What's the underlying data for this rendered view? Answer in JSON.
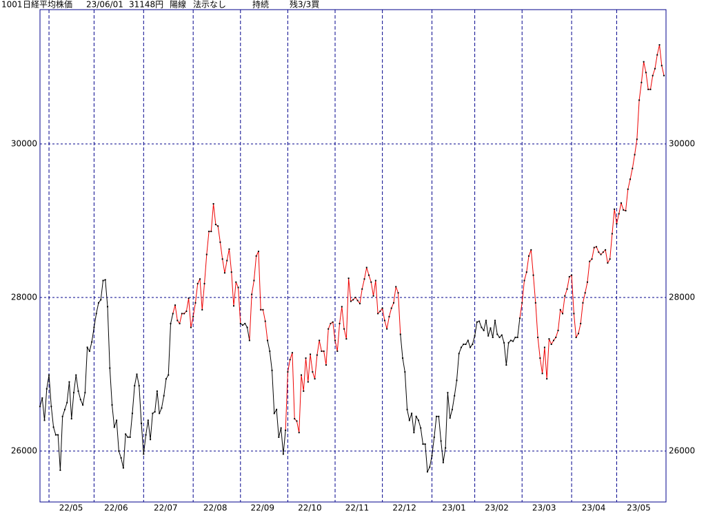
{
  "chart_data": {
    "type": "line",
    "header": [
      "1001",
      "日経平均株価",
      "23/06/01",
      "31148円",
      "陽線",
      "法示なし",
      "持続",
      "残3/3買"
    ],
    "ylim": [
      25336,
      31749
    ],
    "yticks": [
      26000,
      28000,
      30000
    ],
    "xlim": [
      0,
      277.9
    ],
    "xticks": [
      {
        "value": 4,
        "label": "22/05"
      },
      {
        "value": 24,
        "label": "22/06"
      },
      {
        "value": 46,
        "label": "22/07"
      },
      {
        "value": 68,
        "label": "22/08"
      },
      {
        "value": 89,
        "label": "22/09"
      },
      {
        "value": 110,
        "label": "22/10"
      },
      {
        "value": 131,
        "label": "22/11"
      },
      {
        "value": 152,
        "label": "22/12"
      },
      {
        "value": 174,
        "label": "23/01"
      },
      {
        "value": 193,
        "label": "23/02"
      },
      {
        "value": 214,
        "label": "23/03"
      },
      {
        "value": 236,
        "label": "23/04"
      },
      {
        "value": 256,
        "label": "23/05"
      }
    ],
    "grid": true,
    "frame_color": "#00008b",
    "dot_color": "#000",
    "values": [
      26580,
      26690,
      26400,
      26810,
      26990,
      26580,
      26310,
      26210,
      26210,
      25750,
      26450,
      26540,
      26630,
      26900,
      26420,
      26760,
      26990,
      26780,
      26670,
      26600,
      26760,
      27350,
      27300,
      27420,
      27610,
      27790,
      27930,
      27970,
      28220,
      28230,
      27880,
      27080,
      26600,
      26310,
      26400,
      26000,
      25910,
      25780,
      26220,
      26180,
      26180,
      26490,
      26850,
      27000,
      26850,
      26360,
      25960,
      26210,
      26400,
      26150,
      26490,
      26510,
      26780,
      26490,
      26560,
      26720,
      26940,
      26990,
      27660,
      27790,
      27900,
      27700,
      27660,
      27790,
      27790,
      27820,
      27990,
      27610,
      27750,
      27930,
      28180,
      28240,
      27840,
      28180,
      28560,
      28860,
      28860,
      29220,
      28950,
      28930,
      28720,
      28500,
      28320,
      28480,
      28630,
      28330,
      27890,
      28200,
      28130,
      27660,
      27640,
      27660,
      27610,
      27440,
      28040,
      28220,
      28540,
      28600,
      27840,
      27840,
      27690,
      27440,
      27300,
      27050,
      26490,
      26540,
      26180,
      26300,
      25960,
      26270,
      27030,
      27190,
      27280,
      26420,
      26390,
      26240,
      26990,
      26780,
      27210,
      26900,
      27260,
      27030,
      26940,
      27250,
      27440,
      27300,
      27300,
      27120,
      27590,
      27660,
      27680,
      27440,
      27300,
      27660,
      27880,
      27590,
      27460,
      28250,
      27950,
      27970,
      28000,
      27960,
      27920,
      28110,
      28240,
      28390,
      28290,
      28200,
      28020,
      28220,
      27790,
      27820,
      27860,
      27700,
      27590,
      27750,
      27860,
      27930,
      28140,
      28060,
      27520,
      27210,
      27030,
      26540,
      26400,
      26490,
      26240,
      26450,
      26400,
      26300,
      26090,
      26090,
      25730,
      25790,
      25940,
      26180,
      26450,
      26450,
      26130,
      25850,
      26040,
      26760,
      26430,
      26540,
      26720,
      26920,
      27270,
      27350,
      27390,
      27390,
      27440,
      27350,
      27390,
      27500,
      27680,
      27690,
      27610,
      27570,
      27700,
      27500,
      27600,
      27480,
      27700,
      27520,
      27480,
      27510,
      27410,
      27120,
      27410,
      27440,
      27430,
      27480,
      27480,
      27730,
      27930,
      28220,
      28330,
      28540,
      28620,
      28290,
      27930,
      27480,
      27210,
      27010,
      27350,
      26940,
      27460,
      27390,
      27440,
      27480,
      27570,
      27840,
      27790,
      28020,
      28110,
      28270,
      28290,
      27790,
      27480,
      27530,
      27660,
      27930,
      28060,
      28200,
      28470,
      28500,
      28650,
      28660,
      28590,
      28560,
      28590,
      28620,
      28450,
      28500,
      28830,
      29150,
      28960,
      29090,
      29230,
      29140,
      29130,
      29410,
      29540,
      29680,
      29860,
      30060,
      30570,
      30800,
      31070,
      30930,
      30710,
      30710,
      30890,
      30980,
      31160,
      31290,
      31020,
      30890
    ],
    "point_colors": [
      "#000",
      "#000",
      "#000",
      "#000",
      "#000",
      "#000",
      "#000",
      "#000",
      "#000",
      "#000",
      "#000",
      "#000",
      "#000",
      "#000",
      "#000",
      "#000",
      "#000",
      "#000",
      "#000",
      "#000",
      "#000",
      "#000",
      "#000",
      "#000",
      "#000",
      "#000",
      "#000",
      "#000",
      "#000",
      "#000",
      "#000",
      "#000",
      "#000",
      "#000",
      "#000",
      "#000",
      "#000",
      "#000",
      "#000",
      "#000",
      "#000",
      "#000",
      "#000",
      "#000",
      "#000",
      "#000",
      "#000",
      "#000",
      "#000",
      "#000",
      "#000",
      "#000",
      "#000",
      "#000",
      "#000",
      "#000",
      "#000",
      "#000",
      "#000",
      "#000",
      "#e00",
      "#e00",
      "#e00",
      "#e00",
      "#e00",
      "#e00",
      "#e00",
      "#e00",
      "#e00",
      "#e00",
      "#e00",
      "#e00",
      "#e00",
      "#e00",
      "#e00",
      "#e00",
      "#e00",
      "#e00",
      "#e00",
      "#e00",
      "#e00",
      "#e00",
      "#e00",
      "#e00",
      "#e00",
      "#e00",
      "#e00",
      "#e00",
      "#e00",
      "#e00",
      "#000",
      "#000",
      "#000",
      "#000",
      "#e00",
      "#e00",
      "#e00",
      "#e00",
      "#e00",
      "#e00",
      "#e00",
      "#e00",
      "#000",
      "#000",
      "#000",
      "#000",
      "#000",
      "#000",
      "#000",
      "#000",
      "#e00",
      "#e00",
      "#e00",
      "#e00",
      "#e00",
      "#e00",
      "#e00",
      "#e00",
      "#e00",
      "#e00",
      "#e00",
      "#e00",
      "#e00",
      "#e00",
      "#e00",
      "#e00",
      "#e00",
      "#e00",
      "#e00",
      "#e00",
      "#e00",
      "#e00",
      "#e00",
      "#e00",
      "#e00",
      "#e00",
      "#e00",
      "#e00",
      "#e00",
      "#e00",
      "#e00",
      "#e00",
      "#e00",
      "#e00",
      "#e00",
      "#e00",
      "#e00",
      "#e00",
      "#e00",
      "#e00",
      "#e00",
      "#e00",
      "#e00",
      "#e00",
      "#e00",
      "#e00",
      "#e00",
      "#e00",
      "#e00",
      "#e00",
      "#e00",
      "#000",
      "#000",
      "#000",
      "#000",
      "#000",
      "#000",
      "#000",
      "#000",
      "#000",
      "#000",
      "#000",
      "#000",
      "#000",
      "#000",
      "#000",
      "#000",
      "#000",
      "#000",
      "#000",
      "#000",
      "#000",
      "#000",
      "#000",
      "#000",
      "#000",
      "#000",
      "#000",
      "#000",
      "#000",
      "#000",
      "#000",
      "#000",
      "#000",
      "#000",
      "#000",
      "#000",
      "#000",
      "#000",
      "#000",
      "#000",
      "#000",
      "#000",
      "#000",
      "#000",
      "#000",
      "#000",
      "#000",
      "#000",
      "#000",
      "#000",
      "#000",
      "#000",
      "#000",
      "#e00",
      "#e00",
      "#e00",
      "#e00",
      "#e00",
      "#e00",
      "#e00",
      "#e00",
      "#e00",
      "#e00",
      "#e00",
      "#e00",
      "#e00",
      "#e00",
      "#e00",
      "#e00",
      "#e00",
      "#e00",
      "#e00",
      "#e00",
      "#e00",
      "#e00",
      "#e00",
      "#e00",
      "#e00",
      "#e00",
      "#e00",
      "#e00",
      "#e00",
      "#e00",
      "#e00",
      "#e00",
      "#e00",
      "#e00",
      "#e00",
      "#e00",
      "#e00",
      "#e00",
      "#e00",
      "#e00",
      "#e00",
      "#e00",
      "#e00",
      "#e00",
      "#e00",
      "#e00",
      "#e00",
      "#e00",
      "#e00",
      "#e00",
      "#e00",
      "#e00",
      "#e00",
      "#e00",
      "#e00",
      "#e00",
      "#e00",
      "#e00",
      "#e00",
      "#e00",
      "#e00",
      "#e00",
      "#e00",
      "#e00"
    ]
  }
}
